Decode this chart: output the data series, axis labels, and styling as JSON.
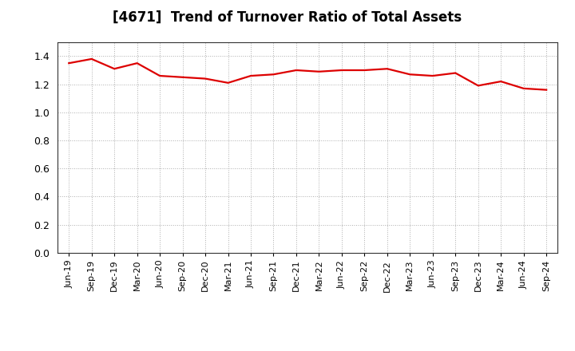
{
  "title": "[4671]  Trend of Turnover Ratio of Total Assets",
  "line_color": "#dd0000",
  "line_width": 1.6,
  "background_color": "#ffffff",
  "grid_color": "#999999",
  "ylim": [
    0.0,
    1.5
  ],
  "yticks": [
    0.0,
    0.2,
    0.4,
    0.6,
    0.8,
    1.0,
    1.2,
    1.4
  ],
  "labels": [
    "Jun-19",
    "Sep-19",
    "Dec-19",
    "Mar-20",
    "Jun-20",
    "Sep-20",
    "Dec-20",
    "Mar-21",
    "Jun-21",
    "Sep-21",
    "Dec-21",
    "Mar-22",
    "Jun-22",
    "Sep-22",
    "Dec-22",
    "Mar-23",
    "Jun-23",
    "Sep-23",
    "Dec-23",
    "Mar-24",
    "Jun-24",
    "Sep-24"
  ],
  "values": [
    1.35,
    1.38,
    1.31,
    1.35,
    1.26,
    1.25,
    1.24,
    1.21,
    1.26,
    1.27,
    1.3,
    1.29,
    1.3,
    1.3,
    1.31,
    1.27,
    1.26,
    1.28,
    1.19,
    1.22,
    1.17,
    1.16
  ]
}
